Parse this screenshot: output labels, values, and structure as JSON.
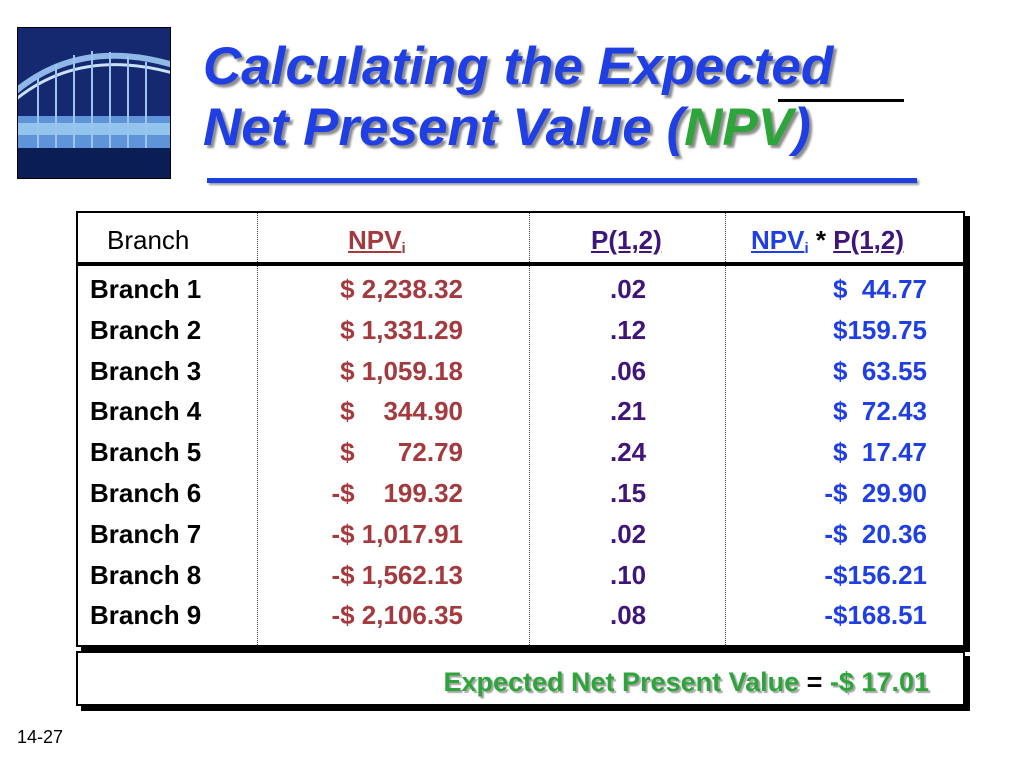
{
  "title": {
    "line1": "Calculating the Expected",
    "line2_prefix": "Net Present Value (",
    "line2_highlight": "NPV",
    "line2_suffix": ")"
  },
  "table": {
    "headers": {
      "branch": "Branch",
      "npv": "NPV",
      "npv_sub": "i",
      "prob": "P(1,2)",
      "product_npv": "NPV",
      "product_sub": "i",
      "product_op": " * ",
      "product_prob": "P(1,2)"
    },
    "rows": [
      {
        "branch": "Branch 1",
        "npv": "$ 2,238.32",
        "prob": ".02",
        "product": "$  44.77"
      },
      {
        "branch": "Branch 2",
        "npv": "$ 1,331.29",
        "prob": ".12",
        "product": "$159.75"
      },
      {
        "branch": "Branch 3",
        "npv": "$ 1,059.18",
        "prob": ".06",
        "product": "$  63.55"
      },
      {
        "branch": "Branch 4",
        "npv": "$    344.90",
        "prob": ".21",
        "product": "$  72.43"
      },
      {
        "branch": "Branch 5",
        "npv": "$      72.79",
        "prob": ".24",
        "product": "$  17.47"
      },
      {
        "branch": "Branch 6",
        "npv": "-$    199.32",
        "prob": ".15",
        "product": "-$  29.90"
      },
      {
        "branch": "Branch 7",
        "npv": "-$ 1,017.91",
        "prob": ".02",
        "product": "-$  20.36"
      },
      {
        "branch": "Branch 8",
        "npv": "-$ 1,562.13",
        "prob": ".10",
        "product": "-$156.21"
      },
      {
        "branch": "Branch 9",
        "npv": "-$ 2,106.35",
        "prob": ".08",
        "product": "-$168.51"
      }
    ],
    "footer": {
      "label": "Expected Net Present Value",
      "equals": " = ",
      "value": "-$  17.01"
    }
  },
  "slide_number": "14-27",
  "colors": {
    "title_blue": "#1f3fe5",
    "highlight_green": "#2ea53a",
    "npv_red": "#a43a3e",
    "prob_purple": "#40157a"
  },
  "icons": {
    "logo": "bridge-photo-icon"
  }
}
